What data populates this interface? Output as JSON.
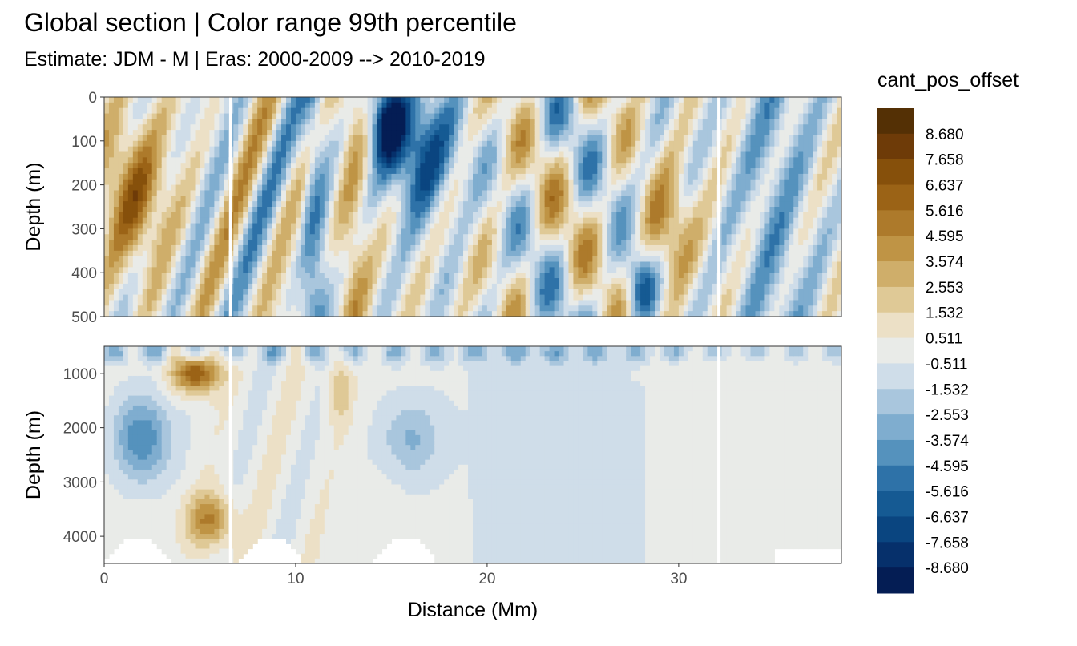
{
  "chart_data": {
    "type": "heatmap",
    "title": "Global section | Color range 99th percentile",
    "subtitle": "Estimate: JDM - M | Eras: 2000-2009 --> 2010-2019",
    "xlabel": "Distance (Mm)",
    "ylabel": "Depth (m)",
    "xlim": [
      0,
      38.5
    ],
    "x_ticks": [
      0,
      10,
      20,
      30
    ],
    "panels": [
      {
        "name": "upper",
        "ylim": [
          0,
          500
        ],
        "y_reversed": true,
        "y_ticks": [
          0,
          100,
          200,
          300,
          400,
          500
        ]
      },
      {
        "name": "lower",
        "ylim": [
          500,
          4500
        ],
        "y_reversed": true,
        "y_ticks": [
          1000,
          2000,
          3000,
          4000
        ]
      }
    ],
    "legend": {
      "title": "cant_pos_offset",
      "placement": "right",
      "labels": [
        "8.680",
        "7.658",
        "6.637",
        "5.616",
        "4.595",
        "3.574",
        "2.553",
        "1.532",
        "0.511",
        "-0.511",
        "-1.532",
        "-2.553",
        "-3.574",
        "-4.595",
        "-5.616",
        "-6.637",
        "-7.658",
        "-8.680"
      ],
      "colors": [
        "#543005",
        "#6e3b08",
        "#86500b",
        "#9b6316",
        "#ad7a2b",
        "#bf9445",
        "#cfae6a",
        "#dfc996",
        "#ece0c6",
        "#e9ebe8",
        "#cfdde9",
        "#a9c6dd",
        "#7fadcf",
        "#5592bd",
        "#2e72a8",
        "#155a93",
        "#0a4580",
        "#06306b",
        "#041d54"
      ]
    },
    "data_note": "",
    "grid": true
  }
}
